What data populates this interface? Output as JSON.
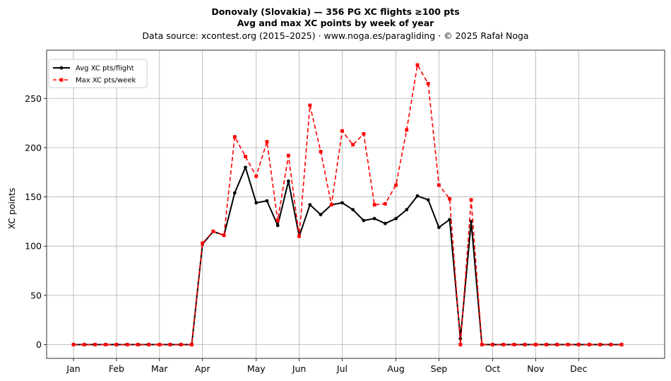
{
  "chart_data": {
    "type": "line",
    "title": "Donovaly (Slovakia)  —  356 PG XC flights ≥100 pts",
    "subtitle": "Avg and max XC points by week of year",
    "source_line": "Data source: xcontest.org (2015–2025)  ·  www.noga.es/paragliding  ·  © 2025 Rafał Noga",
    "xlabel": "",
    "ylabel": "XC points",
    "x_unit": "week of year",
    "xlim": [
      -2.5,
      55
    ],
    "ylim": [
      -14,
      299
    ],
    "x_ticks": [
      {
        "label": "Jan",
        "week": 0
      },
      {
        "label": "Feb",
        "week": 4
      },
      {
        "label": "Mar",
        "week": 8
      },
      {
        "label": "Apr",
        "week": 12
      },
      {
        "label": "May",
        "week": 17
      },
      {
        "label": "Jun",
        "week": 21
      },
      {
        "label": "Jul",
        "week": 25
      },
      {
        "label": "Aug",
        "week": 30
      },
      {
        "label": "Sep",
        "week": 34
      },
      {
        "label": "Oct",
        "week": 39
      },
      {
        "label": "Nov",
        "week": 43
      },
      {
        "label": "Dec",
        "week": 47
      }
    ],
    "y_ticks": [
      0,
      50,
      100,
      150,
      200,
      250
    ],
    "grid": true,
    "legend_position": "top-left",
    "x": [
      0,
      1,
      2,
      3,
      4,
      5,
      6,
      7,
      8,
      9,
      10,
      11,
      12,
      13,
      14,
      15,
      16,
      17,
      18,
      19,
      20,
      21,
      22,
      23,
      24,
      25,
      26,
      27,
      28,
      29,
      30,
      31,
      32,
      33,
      34,
      35,
      36,
      37,
      38,
      39,
      40,
      41,
      42,
      43,
      44,
      45,
      46,
      47,
      48,
      49,
      50,
      51
    ],
    "series": [
      {
        "name": "Avg XC pts/flight",
        "color": "#000000",
        "style": "solid",
        "marker": "circle",
        "values": [
          0,
          0,
          0,
          0,
          0,
          0,
          0,
          0,
          0,
          0,
          0,
          0,
          102,
          115,
          111,
          154,
          180,
          144,
          146,
          121,
          166,
          110,
          142,
          132,
          142,
          144,
          137,
          126,
          128,
          123,
          128,
          137,
          151,
          147,
          119,
          127,
          6,
          125,
          0,
          0,
          0,
          0,
          0,
          0,
          0,
          0,
          0,
          0,
          0,
          0,
          0,
          0
        ]
      },
      {
        "name": "Max XC pts/week",
        "color": "#ff0000",
        "style": "dashed",
        "marker": "square",
        "values": [
          0,
          0,
          0,
          0,
          0,
          0,
          0,
          0,
          0,
          0,
          0,
          0,
          103,
          115,
          111,
          211,
          191,
          171,
          206,
          126,
          192,
          110,
          243,
          196,
          142,
          217,
          203,
          214,
          142,
          143,
          162,
          218,
          284,
          265,
          162,
          148,
          0,
          147,
          0,
          0,
          0,
          0,
          0,
          0,
          0,
          0,
          0,
          0,
          0,
          0,
          0,
          0
        ]
      }
    ]
  }
}
